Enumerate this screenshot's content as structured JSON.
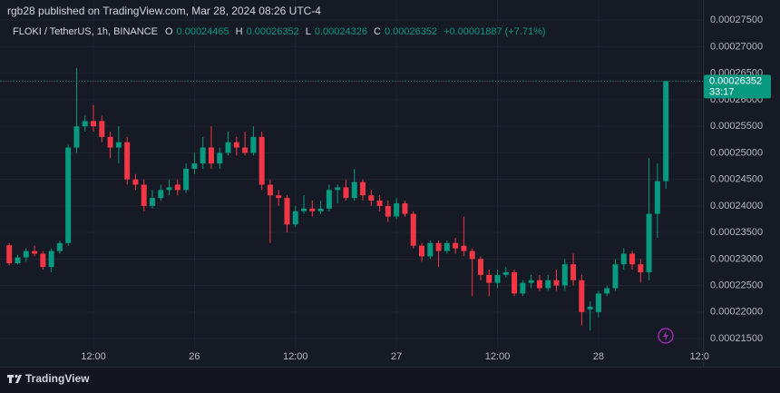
{
  "chart_data": {
    "type": "candlestick",
    "attribution": "rgb28 published on TradingView.com, Mar 28, 2024 08:26 UTC-4",
    "symbol": "FLOKI / TetherUS, 1h, BINANCE",
    "ohlc_header": [
      {
        "label": "O",
        "value": "0.00024465"
      },
      {
        "label": "H",
        "value": "0.00026352"
      },
      {
        "label": "L",
        "value": "0.00024326"
      },
      {
        "label": "C",
        "value": "0.00026352"
      }
    ],
    "change": "+0.00001887 (+7.71%)",
    "countdown": "33:17",
    "brand": "TradingView",
    "up_color": "#089981",
    "down_color": "#f23645",
    "grid": true,
    "x": [
      2,
      3,
      4,
      5,
      6,
      7,
      8,
      9,
      10,
      11,
      12,
      13,
      14,
      15,
      16,
      17,
      18,
      19,
      20,
      21,
      22,
      23,
      24,
      25,
      26,
      27,
      28,
      29,
      30,
      31,
      32,
      33,
      34,
      35,
      36,
      37,
      38,
      39,
      40,
      41,
      42,
      43,
      44,
      45,
      46,
      47,
      48,
      49,
      50,
      51,
      52,
      53,
      54,
      55,
      56,
      57,
      58,
      59,
      60,
      61,
      62,
      63,
      64,
      65,
      66,
      67,
      68,
      69,
      70,
      71,
      72,
      73,
      74,
      75,
      76,
      77,
      78,
      79,
      80
    ],
    "open": [
      0.0002326,
      0.0002292,
      0.0002303,
      0.0002315,
      0.000231,
      0.0002285,
      0.0002315,
      0.000233,
      0.000251,
      0.000255,
      0.000256,
      0.000256,
      0.000253,
      0.000251,
      0.000252,
      0.000245,
      0.000244,
      0.00024,
      0.0002415,
      0.000243,
      0.000244,
      0.000243,
      0.000247,
      0.000248,
      0.000251,
      0.000248,
      0.00025,
      0.000252,
      0.000251,
      0.00025,
      0.000253,
      0.000244,
      0.000242,
      0.0002415,
      0.0002365,
      0.000239,
      0.0002395,
      0.000239,
      0.0002395,
      0.000243,
      0.0002435,
      0.0002415,
      0.0002445,
      0.000242,
      0.000241,
      0.00024,
      0.000238,
      0.0002405,
      0.0002385,
      0.0002325,
      0.0002305,
      0.000233,
      0.0002315,
      0.000233,
      0.0002325,
      0.0002315,
      0.00023,
      0.000227,
      0.0002255,
      0.000227,
      0.0002275,
      0.0002235,
      0.0002255,
      0.000226,
      0.0002245,
      0.000226,
      0.000225,
      0.000229,
      0.000226,
      0.0002205,
      0.00022,
      0.0002235,
      0.0002245,
      0.000229,
      0.000231,
      0.000229,
      0.0002275,
      0.0002385,
      0.00024465
    ],
    "high": [
      0.000233,
      0.0002308,
      0.000232,
      0.0002325,
      0.0002315,
      0.000232,
      0.0002335,
      0.0002515,
      0.000266,
      0.000257,
      0.000259,
      0.000257,
      0.000254,
      0.000255,
      0.000253,
      0.000246,
      0.000245,
      0.000243,
      0.000244,
      0.000245,
      0.000245,
      0.000248,
      0.00025,
      0.000253,
      0.000255,
      0.000251,
      0.000254,
      0.000253,
      0.000254,
      0.000255,
      0.000254,
      0.000245,
      0.000243,
      0.000242,
      0.00024,
      0.000242,
      0.000241,
      0.000241,
      0.000244,
      0.000244,
      0.000245,
      0.000247,
      0.000245,
      0.000243,
      0.000242,
      0.000241,
      0.0002415,
      0.000241,
      0.000239,
      0.000233,
      0.0002335,
      0.0002335,
      0.0002335,
      0.000234,
      0.000238,
      0.000232,
      0.0002305,
      0.000228,
      0.000228,
      0.0002285,
      0.000228,
      0.000226,
      0.000227,
      0.000227,
      0.000227,
      0.000228,
      0.00023,
      0.000231,
      0.000227,
      0.000222,
      0.000224,
      0.000225,
      0.00023,
      0.000232,
      0.0002315,
      0.00023,
      0.000249,
      0.000248,
      0.00026352
    ],
    "low": [
      0.0002288,
      0.000229,
      0.0002295,
      0.0002305,
      0.000228,
      0.0002275,
      0.000231,
      0.0002325,
      0.00025,
      0.000254,
      0.000254,
      0.000252,
      0.000249,
      0.000248,
      0.000244,
      0.000243,
      0.000239,
      0.0002395,
      0.000241,
      0.000242,
      0.000242,
      0.0002425,
      0.000246,
      0.000247,
      0.000247,
      0.000247,
      0.0002495,
      0.0002495,
      0.0002495,
      0.0002495,
      0.000243,
      0.000233,
      0.00024,
      0.000235,
      0.000236,
      0.0002385,
      0.000238,
      0.0002385,
      0.000239,
      0.0002405,
      0.000241,
      0.000241,
      0.000241,
      0.00024,
      0.000239,
      0.000237,
      0.0002375,
      0.000238,
      0.000232,
      0.0002295,
      0.00023,
      0.0002285,
      0.000231,
      0.000231,
      0.0002305,
      0.000223,
      0.000226,
      0.000223,
      0.0002245,
      0.0002265,
      0.000223,
      0.000223,
      0.0002245,
      0.000224,
      0.000224,
      0.000224,
      0.000224,
      0.000225,
      0.0002175,
      0.0002165,
      0.000219,
      0.000223,
      0.000224,
      0.000228,
      0.000228,
      0.0002255,
      0.000226,
      0.000234,
      0.00024326
    ],
    "close": [
      0.0002292,
      0.0002303,
      0.0002315,
      0.000231,
      0.0002285,
      0.0002315,
      0.000233,
      0.000251,
      0.000255,
      0.000256,
      0.000255,
      0.000253,
      0.000251,
      0.000252,
      0.000245,
      0.000244,
      0.00024,
      0.0002415,
      0.000243,
      0.0002435,
      0.000243,
      0.000247,
      0.000248,
      0.000251,
      0.000248,
      0.00025,
      0.000252,
      0.000251,
      0.00025,
      0.000253,
      0.000244,
      0.000242,
      0.0002415,
      0.0002365,
      0.000239,
      0.0002395,
      0.000239,
      0.0002395,
      0.000243,
      0.0002435,
      0.0002415,
      0.0002445,
      0.000242,
      0.000241,
      0.00024,
      0.000238,
      0.0002405,
      0.0002385,
      0.0002325,
      0.0002305,
      0.000233,
      0.0002315,
      0.000233,
      0.000232,
      0.0002315,
      0.00023,
      0.000227,
      0.0002255,
      0.000227,
      0.0002275,
      0.0002235,
      0.0002255,
      0.000226,
      0.0002245,
      0.000226,
      0.000225,
      0.000229,
      0.000226,
      0.00022,
      0.000221,
      0.0002235,
      0.0002245,
      0.000229,
      0.000231,
      0.000229,
      0.0002275,
      0.0002385,
      0.00024465,
      0.00026352
    ],
    "xlim": [
      0.9,
      84.4
    ],
    "xticks": [
      {
        "value": 12,
        "label": "12:00"
      },
      {
        "value": 24,
        "label": "26"
      },
      {
        "value": 36,
        "label": "12:00"
      },
      {
        "value": 48,
        "label": "27"
      },
      {
        "value": 60,
        "label": "12:00"
      },
      {
        "value": 72,
        "label": "28"
      },
      {
        "value": 84,
        "label": "12:0"
      }
    ],
    "ylim": [
      0.0002133,
      0.0002788
    ],
    "yticks": [
      {
        "value": 0.000215,
        "label": "0.00021500"
      },
      {
        "value": 0.00022,
        "label": "0.00022000"
      },
      {
        "value": 0.000225,
        "label": "0.00022500"
      },
      {
        "value": 0.00023,
        "label": "0.00023000"
      },
      {
        "value": 0.000235,
        "label": "0.00023500"
      },
      {
        "value": 0.00024,
        "label": "0.00024000"
      },
      {
        "value": 0.000245,
        "label": "0.00024500"
      },
      {
        "value": 0.00025,
        "label": "0.00025000"
      },
      {
        "value": 0.000255,
        "label": "0.00025500"
      },
      {
        "value": 0.00026,
        "label": "0.00026000"
      },
      {
        "value": 0.000265,
        "label": "0.00026500"
      },
      {
        "value": 0.00027,
        "label": "0.00027000"
      },
      {
        "value": 0.000275,
        "label": "0.00027500"
      }
    ]
  }
}
